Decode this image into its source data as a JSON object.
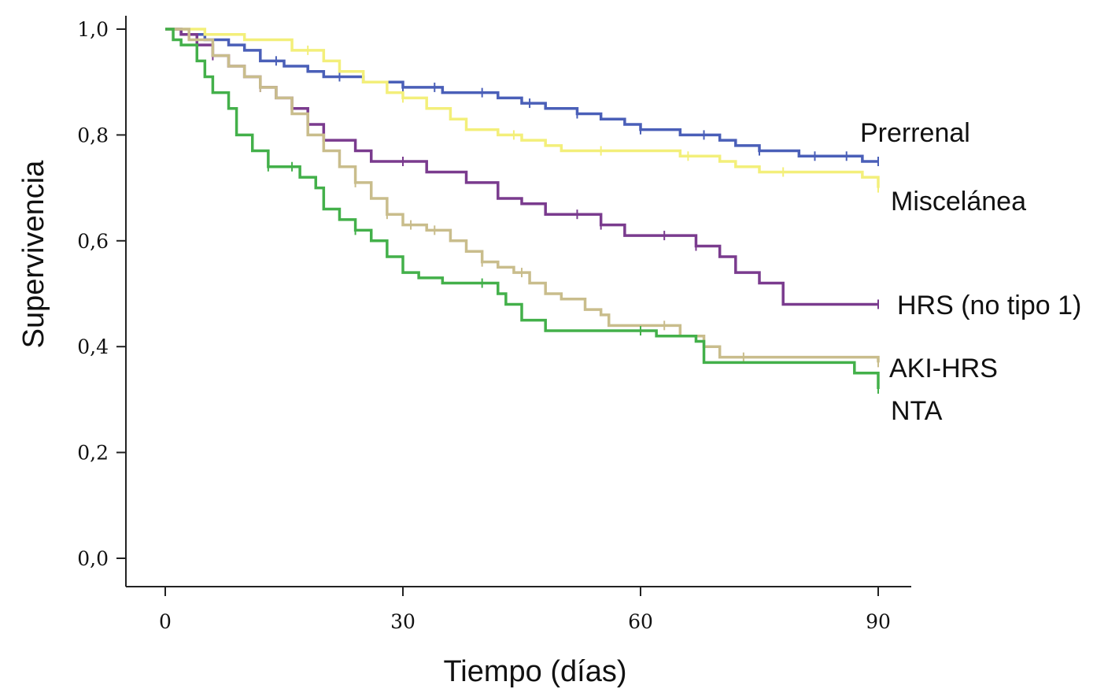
{
  "chart_data": {
    "type": "line",
    "step": true,
    "xlabel": "Tiempo (días)",
    "ylabel": "Supervivencia",
    "xlim": [
      0,
      90
    ],
    "ylim": [
      0,
      1
    ],
    "x_ticks": [
      0,
      30,
      60,
      90
    ],
    "x_tick_labels": [
      "0",
      "30",
      "60",
      "90"
    ],
    "y_ticks": [
      0,
      0.2,
      0.4,
      0.6,
      0.8,
      1.0
    ],
    "y_tick_labels": [
      "0,0",
      "0,2",
      "0,4",
      "0,6",
      "0,8",
      "1,0"
    ],
    "grid": false,
    "legend": "direct labels at right end of curves",
    "series": [
      {
        "name": "Prerrenal",
        "color": "#4a5fb8",
        "points": [
          [
            0,
            1.0
          ],
          [
            2,
            0.99
          ],
          [
            5,
            0.98
          ],
          [
            8,
            0.97
          ],
          [
            10,
            0.96
          ],
          [
            12,
            0.94
          ],
          [
            15,
            0.93
          ],
          [
            18,
            0.92
          ],
          [
            20,
            0.91
          ],
          [
            25,
            0.9
          ],
          [
            30,
            0.89
          ],
          [
            35,
            0.88
          ],
          [
            42,
            0.87
          ],
          [
            45,
            0.86
          ],
          [
            48,
            0.85
          ],
          [
            50,
            0.85
          ],
          [
            52,
            0.84
          ],
          [
            55,
            0.83
          ],
          [
            58,
            0.82
          ],
          [
            60,
            0.81
          ],
          [
            65,
            0.8
          ],
          [
            70,
            0.79
          ],
          [
            72,
            0.78
          ],
          [
            75,
            0.77
          ],
          [
            80,
            0.76
          ],
          [
            85,
            0.76
          ],
          [
            88,
            0.75
          ],
          [
            90,
            0.75
          ]
        ],
        "censor_x": [
          14,
          22,
          30,
          34,
          40,
          46,
          52,
          60,
          68,
          75,
          82,
          86,
          90
        ]
      },
      {
        "name": "Miscelánea",
        "color": "#f3ef7a",
        "points": [
          [
            0,
            1.0
          ],
          [
            5,
            0.99
          ],
          [
            10,
            0.98
          ],
          [
            16,
            0.96
          ],
          [
            20,
            0.94
          ],
          [
            22,
            0.92
          ],
          [
            25,
            0.9
          ],
          [
            28,
            0.88
          ],
          [
            30,
            0.87
          ],
          [
            33,
            0.85
          ],
          [
            36,
            0.83
          ],
          [
            38,
            0.81
          ],
          [
            42,
            0.8
          ],
          [
            45,
            0.79
          ],
          [
            48,
            0.78
          ],
          [
            50,
            0.77
          ],
          [
            60,
            0.77
          ],
          [
            65,
            0.76
          ],
          [
            70,
            0.75
          ],
          [
            72,
            0.74
          ],
          [
            75,
            0.73
          ],
          [
            85,
            0.73
          ],
          [
            88,
            0.72
          ],
          [
            90,
            0.7
          ]
        ],
        "censor_x": [
          18,
          30,
          44,
          55,
          66,
          78,
          90
        ]
      },
      {
        "name": "HRS (no tipo 1)",
        "color": "#7a3b8e",
        "points": [
          [
            0,
            1.0
          ],
          [
            2,
            0.99
          ],
          [
            4,
            0.97
          ],
          [
            6,
            0.95
          ],
          [
            8,
            0.93
          ],
          [
            10,
            0.91
          ],
          [
            12,
            0.89
          ],
          [
            14,
            0.87
          ],
          [
            16,
            0.85
          ],
          [
            18,
            0.82
          ],
          [
            20,
            0.79
          ],
          [
            24,
            0.77
          ],
          [
            26,
            0.75
          ],
          [
            33,
            0.73
          ],
          [
            38,
            0.71
          ],
          [
            42,
            0.68
          ],
          [
            45,
            0.67
          ],
          [
            48,
            0.65
          ],
          [
            52,
            0.65
          ],
          [
            55,
            0.63
          ],
          [
            58,
            0.61
          ],
          [
            65,
            0.61
          ],
          [
            67,
            0.59
          ],
          [
            70,
            0.57
          ],
          [
            72,
            0.54
          ],
          [
            75,
            0.52
          ],
          [
            78,
            0.48
          ],
          [
            90,
            0.48
          ]
        ],
        "censor_x": [
          6,
          12,
          30,
          52,
          55,
          63,
          67,
          90
        ]
      },
      {
        "name": "AKI-HRS",
        "color": "#c9bd8c",
        "points": [
          [
            0,
            1.0
          ],
          [
            3,
            0.98
          ],
          [
            6,
            0.95
          ],
          [
            8,
            0.93
          ],
          [
            10,
            0.91
          ],
          [
            12,
            0.89
          ],
          [
            14,
            0.87
          ],
          [
            16,
            0.84
          ],
          [
            18,
            0.8
          ],
          [
            20,
            0.77
          ],
          [
            22,
            0.74
          ],
          [
            24,
            0.71
          ],
          [
            26,
            0.68
          ],
          [
            28,
            0.65
          ],
          [
            30,
            0.63
          ],
          [
            33,
            0.62
          ],
          [
            36,
            0.6
          ],
          [
            38,
            0.58
          ],
          [
            40,
            0.56
          ],
          [
            42,
            0.55
          ],
          [
            44,
            0.54
          ],
          [
            46,
            0.52
          ],
          [
            48,
            0.5
          ],
          [
            50,
            0.49
          ],
          [
            53,
            0.47
          ],
          [
            55,
            0.46
          ],
          [
            56,
            0.44
          ],
          [
            62,
            0.44
          ],
          [
            65,
            0.42
          ],
          [
            68,
            0.4
          ],
          [
            70,
            0.38
          ],
          [
            90,
            0.37
          ]
        ],
        "censor_x": [
          12,
          24,
          28,
          31,
          34,
          40,
          45,
          63,
          73,
          90
        ]
      },
      {
        "name": "NTA",
        "color": "#43b04a",
        "points": [
          [
            0,
            1.0
          ],
          [
            1,
            0.98
          ],
          [
            2,
            0.97
          ],
          [
            4,
            0.94
          ],
          [
            5,
            0.91
          ],
          [
            6,
            0.88
          ],
          [
            8,
            0.85
          ],
          [
            9,
            0.8
          ],
          [
            11,
            0.77
          ],
          [
            13,
            0.74
          ],
          [
            17,
            0.72
          ],
          [
            19,
            0.7
          ],
          [
            20,
            0.66
          ],
          [
            22,
            0.64
          ],
          [
            24,
            0.62
          ],
          [
            26,
            0.6
          ],
          [
            28,
            0.57
          ],
          [
            30,
            0.54
          ],
          [
            32,
            0.53
          ],
          [
            35,
            0.52
          ],
          [
            40,
            0.52
          ],
          [
            42,
            0.5
          ],
          [
            43,
            0.48
          ],
          [
            45,
            0.45
          ],
          [
            48,
            0.43
          ],
          [
            60,
            0.43
          ],
          [
            62,
            0.42
          ],
          [
            67,
            0.41
          ],
          [
            68,
            0.37
          ],
          [
            84,
            0.37
          ],
          [
            87,
            0.35
          ],
          [
            90,
            0.32
          ]
        ],
        "censor_x": [
          13,
          16,
          24,
          40,
          60,
          90
        ]
      }
    ]
  }
}
